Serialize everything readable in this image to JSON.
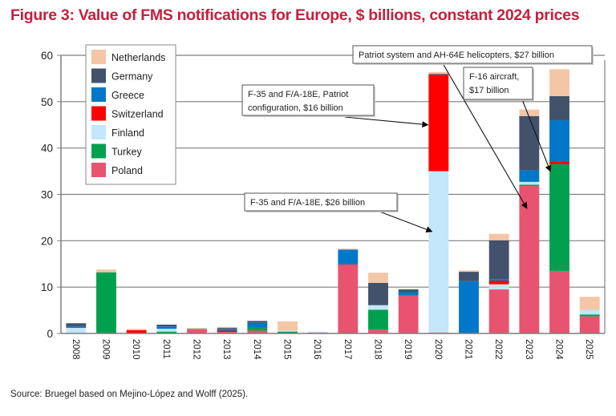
{
  "title": "Figure 3: Value of FMS notifications for Europe, $ billions, constant 2024 prices",
  "source": "Source: Bruegel based on Mejino-López and Wolff (2025).",
  "chart_data": {
    "type": "bar",
    "stacked": true,
    "title": "Figure 3: Value of FMS notifications for Europe, $ billions, constant 2024 prices",
    "xlabel": "",
    "ylabel": "",
    "ylim": [
      0,
      60
    ],
    "yticks": [
      0,
      10,
      20,
      30,
      40,
      50,
      60
    ],
    "grid": true,
    "legend_position": "top-left",
    "categories": [
      "2008",
      "2009",
      "2010",
      "2011",
      "2012",
      "2013",
      "2014",
      "2015",
      "2016",
      "2017",
      "2018",
      "2019",
      "2020",
      "2021",
      "2022",
      "2023",
      "2024",
      "2025"
    ],
    "series": [
      {
        "name": "Poland",
        "color": "#e8546f",
        "values": [
          0,
          0,
          0,
          0,
          0.9,
          0.3,
          0.6,
          0,
          0.2,
          14.8,
          0.8,
          8.2,
          0.2,
          0,
          9.5,
          31.8,
          13.5,
          3.7
        ]
      },
      {
        "name": "Turkey",
        "color": "#00a04f",
        "values": [
          0,
          13.2,
          0,
          0.4,
          0.1,
          0,
          0.7,
          0.4,
          0,
          0,
          4.3,
          0,
          0,
          0,
          0,
          0.3,
          23.0,
          0.4
        ]
      },
      {
        "name": "Finland",
        "color": "#c3e6fa",
        "values": [
          1.2,
          0,
          0,
          0.6,
          0,
          0,
          0,
          0.2,
          0.2,
          0,
          1.0,
          0,
          34.8,
          0,
          1.1,
          0.6,
          0,
          1.0
        ]
      },
      {
        "name": "Switzerland",
        "color": "#ff0000",
        "values": [
          0,
          0,
          0.7,
          0,
          0,
          0.3,
          0,
          0,
          0,
          0.1,
          0,
          0,
          20.8,
          0,
          0.8,
          0,
          0.5,
          0
        ]
      },
      {
        "name": "Greece",
        "color": "#0077c8",
        "values": [
          0.3,
          0,
          0,
          0.5,
          0,
          0.4,
          1.0,
          0,
          0,
          3.2,
          0,
          0.7,
          0,
          11.3,
          0.3,
          2.5,
          9.0,
          0
        ]
      },
      {
        "name": "Germany",
        "color": "#43526b",
        "values": [
          0.7,
          0,
          0,
          0.4,
          0,
          0.2,
          0.4,
          0,
          0,
          0,
          4.8,
          0.6,
          0.2,
          2.0,
          8.4,
          11.7,
          5.2,
          0
        ]
      },
      {
        "name": "Netherlands",
        "color": "#f4c6a6",
        "values": [
          0,
          0.6,
          0.3,
          0,
          0.2,
          0.2,
          0,
          2.0,
          0,
          0.2,
          2.2,
          0.1,
          0.4,
          0.3,
          1.4,
          1.4,
          5.8,
          2.8
        ]
      }
    ],
    "legend_order": [
      "Netherlands",
      "Germany",
      "Greece",
      "Switzerland",
      "Finland",
      "Turkey",
      "Poland"
    ],
    "annotations": [
      {
        "id": "ann-2020-switzerland",
        "lines": [
          "F-35 and F/A-18E, Patriot",
          "configuration, $16 billion"
        ],
        "target_year": "2020",
        "target_series": "Switzerland",
        "target_value": 45
      },
      {
        "id": "ann-2020-finland",
        "lines": [
          "F-35 and F/A-18E, $26 billion"
        ],
        "target_year": "2020",
        "target_series": "Finland",
        "target_value": 22
      },
      {
        "id": "ann-2023-poland",
        "lines": [
          "Patriot system and AH-64E helicopters, $27 billion"
        ],
        "target_year": "2023",
        "target_series": "Poland",
        "target_value": 27
      },
      {
        "id": "ann-2024-turkey",
        "lines": [
          "F-16 aircraft,",
          "$17 billion"
        ],
        "target_year": "2024",
        "target_series": "Turkey",
        "target_value": 35
      }
    ]
  }
}
